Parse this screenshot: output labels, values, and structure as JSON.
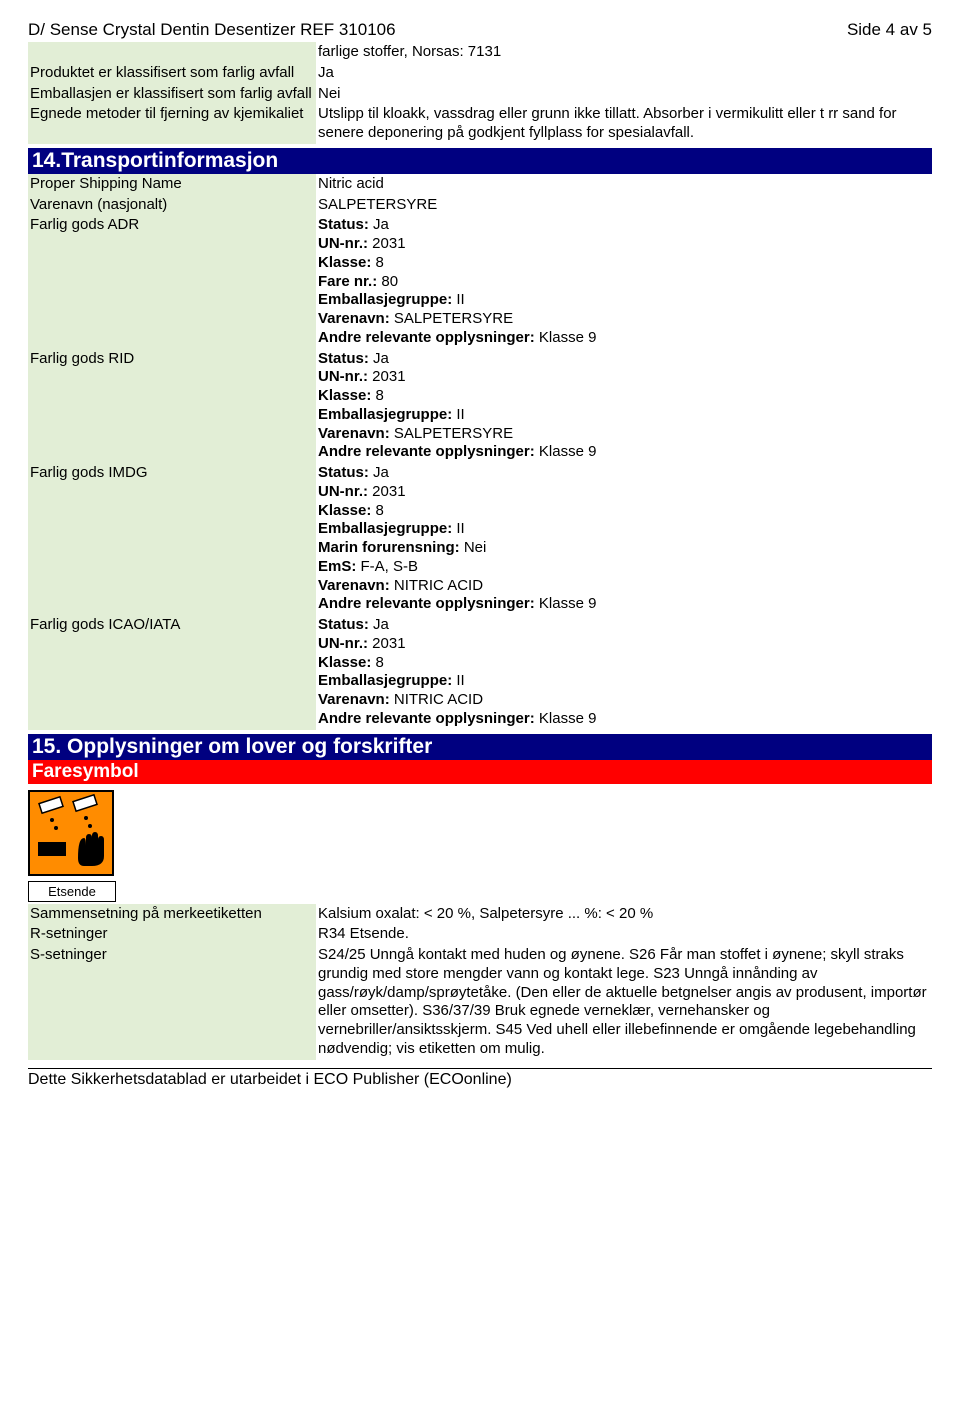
{
  "header": {
    "title_left": "D/ Sense Crystal Dentin Desentizer REF 310106",
    "title_right": "Side 4 av 5"
  },
  "top_table": {
    "note_line": "farlige stoffer,   Norsas: 7131",
    "rows": [
      {
        "label": "Produktet er klassifisert som farlig avfall",
        "value": "Ja"
      },
      {
        "label": "Emballasjen er klassifisert som farlig avfall",
        "value": "Nei"
      },
      {
        "label": "Egnede metoder til fjerning av kjemikaliet",
        "value": "Utslipp til kloakk, vassdrag eller grunn ikke tillatt. Absorber i vermikulitt eller t rr sand for senere deponering på godkjent fyllplass for spesialavfall."
      }
    ]
  },
  "section14": {
    "title": "14.Transportinformasjon",
    "rows": [
      {
        "label": "Proper Shipping Name",
        "value": "Nitric acid"
      },
      {
        "label": "Varenavn (nasjonalt)",
        "value": "SALPETERSYRE"
      }
    ],
    "adr": {
      "label": "Farlig gods ADR",
      "lines": [
        {
          "k": "Status:",
          "v": " Ja"
        },
        {
          "k": "UN-nr.:",
          "v": " 2031"
        },
        {
          "k": "Klasse:",
          "v": " 8"
        },
        {
          "k": "Fare nr.:",
          "v": " 80"
        },
        {
          "k": "Emballasjegruppe:",
          "v": " II"
        },
        {
          "k": "Varenavn:",
          "v": " SALPETERSYRE"
        },
        {
          "k": "Andre relevante opplysninger:",
          "v": " Klasse 9"
        }
      ]
    },
    "rid": {
      "label": "Farlig gods RID",
      "lines": [
        {
          "k": "Status:",
          "v": " Ja"
        },
        {
          "k": "UN-nr.:",
          "v": " 2031"
        },
        {
          "k": "Klasse:",
          "v": " 8"
        },
        {
          "k": "Emballasjegruppe:",
          "v": " II"
        },
        {
          "k": "Varenavn:",
          "v": " SALPETERSYRE"
        },
        {
          "k": "Andre relevante opplysninger:",
          "v": " Klasse 9"
        }
      ]
    },
    "imdg": {
      "label": "Farlig gods IMDG",
      "lines": [
        {
          "k": "Status:",
          "v": " Ja"
        },
        {
          "k": "UN-nr.:",
          "v": " 2031"
        },
        {
          "k": "Klasse:",
          "v": " 8"
        },
        {
          "k": "Emballasjegruppe:",
          "v": " II"
        },
        {
          "k": "Marin forurensning:",
          "v": " Nei"
        },
        {
          "k": "EmS:",
          "v": " F-A, S-B"
        },
        {
          "k": "Varenavn:",
          "v": " NITRIC ACID"
        },
        {
          "k": "Andre relevante opplysninger:",
          "v": " Klasse 9"
        }
      ]
    },
    "icao": {
      "label": "Farlig gods ICAO/IATA",
      "lines": [
        {
          "k": "Status:",
          "v": " Ja"
        },
        {
          "k": "UN-nr.:",
          "v": " 2031"
        },
        {
          "k": "Klasse:",
          "v": " 8"
        },
        {
          "k": "Emballasjegruppe:",
          "v": " II"
        },
        {
          "k": "Varenavn:",
          "v": " NITRIC ACID"
        },
        {
          "k": "Andre relevante opplysninger:",
          "v": " Klasse 9"
        }
      ]
    }
  },
  "section15": {
    "title": "15. Opplysninger om lover og forskrifter",
    "sub": "Faresymbol",
    "hazard_label": "Etsende",
    "rows": [
      {
        "label": "Sammensetning på merkeetiketten",
        "value": "Kalsium oxalat: < 20 %, Salpetersyre ... %: < 20 %"
      },
      {
        "label": "R-setninger",
        "value": "R34 Etsende."
      },
      {
        "label": "S-setninger",
        "value": "S24/25 Unngå kontakt med huden og øynene. S26 Får man stoffet i øynene; skyll straks grundig med store mengder vann og kontakt lege. S23 Unngå innånding av gass/røyk/damp/sprøytetåke. (Den eller de aktuelle betgnelser angis av produsent, importør eller omsetter). S36/37/39 Bruk egnede verneklær, vernehansker og vernebriller/ansiktsskjerm. S45 Ved uhell eller illebefinnende er omgående legebehandling nødvendig; vis etiketten om mulig."
      }
    ]
  },
  "footer": "Dette Sikkerhetsdatablad er utarbeidet i ECO Publisher (ECOonline)"
}
